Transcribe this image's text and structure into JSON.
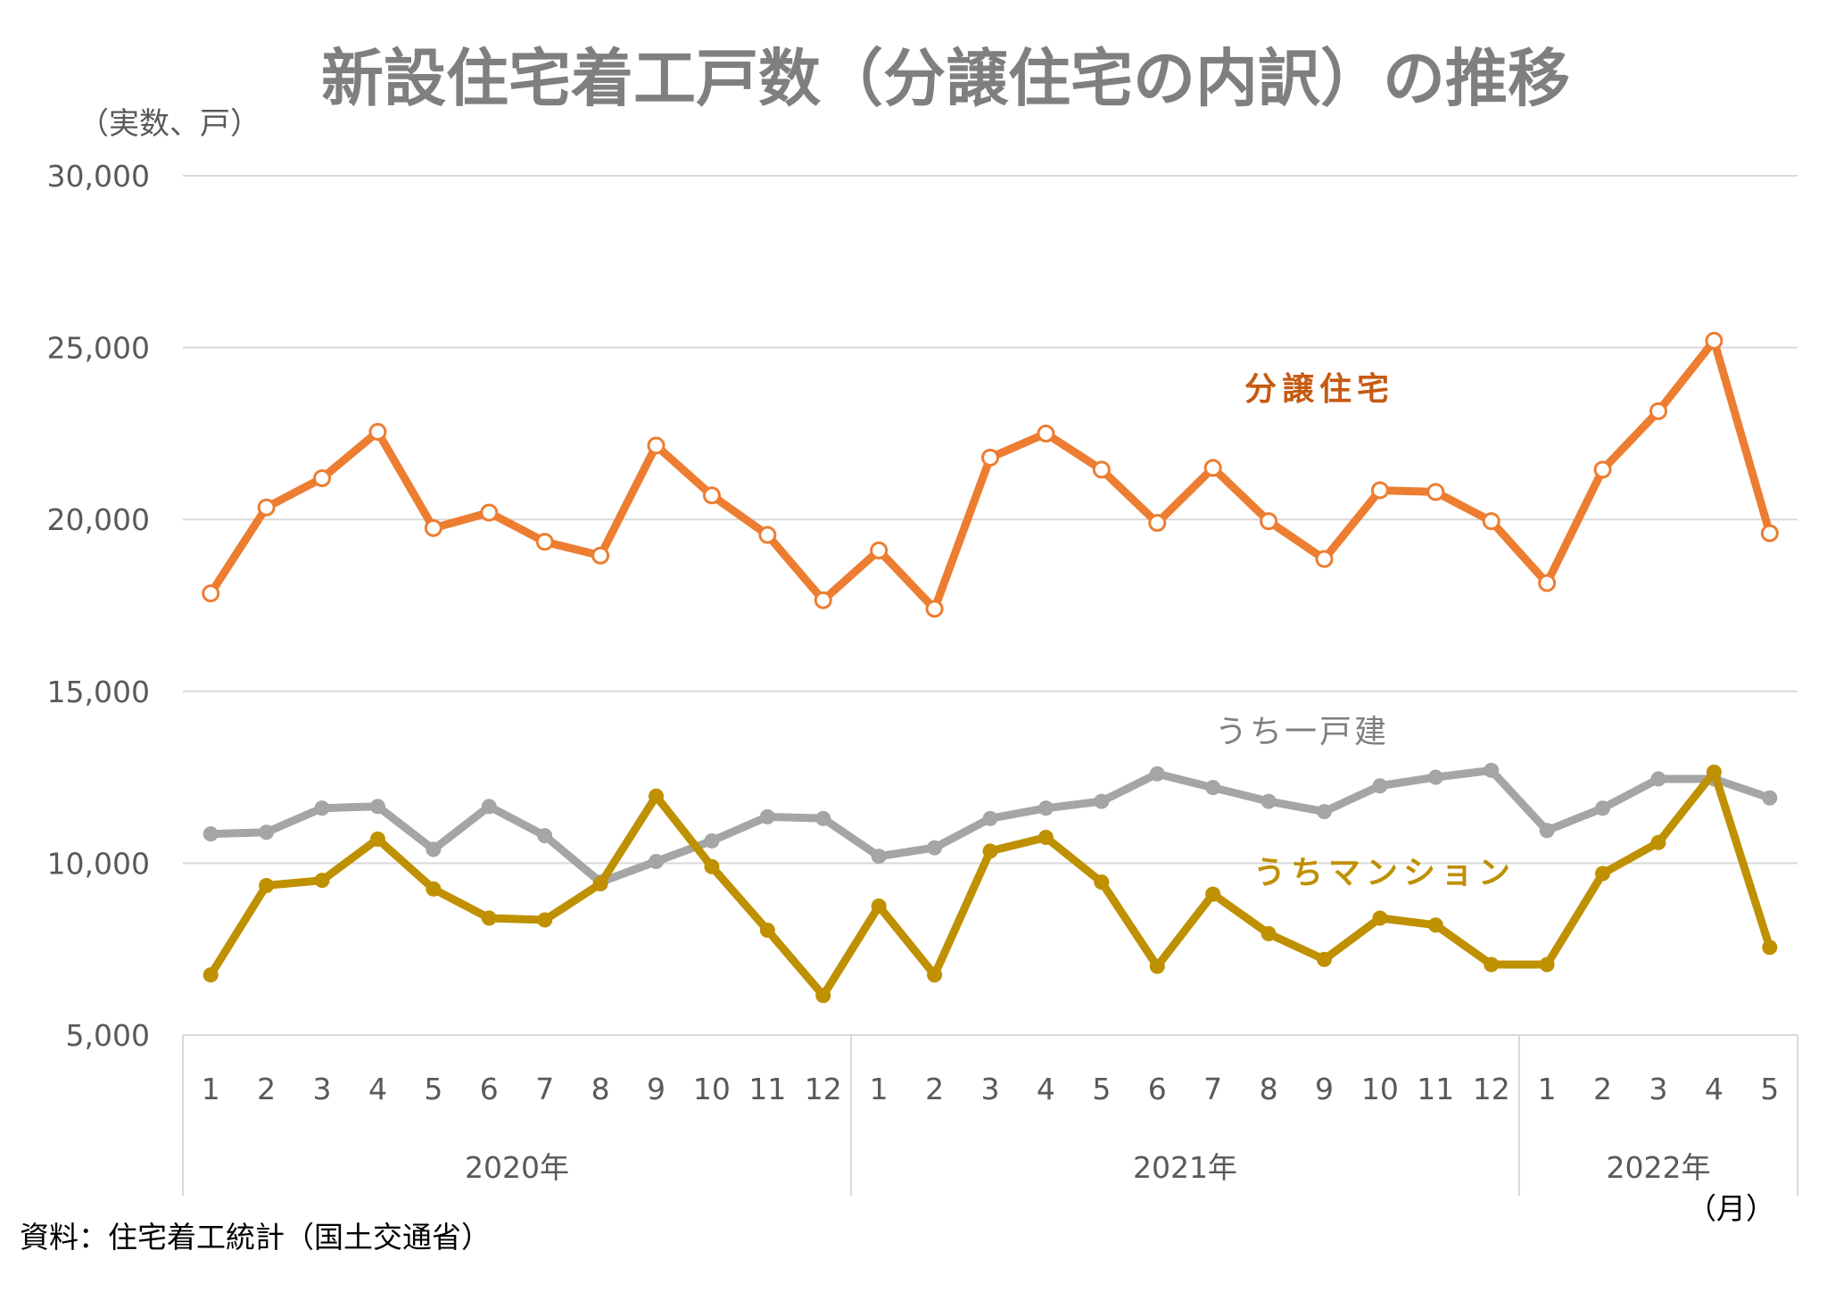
{
  "title": "新設住宅着工戸数（分譲住宅の内訳）の推移",
  "unit_label": "（実数、戸）",
  "x_unit_label": "（月）",
  "source": "資料：住宅着工統計（国土交通省）",
  "colors": {
    "bunjo": "#ED7D31",
    "kodate": "#A5A5A5",
    "mansion": "#BF9000",
    "grid": "#D9D9D9",
    "axis": "#D9D9D9",
    "bunjo_label": "#C55A11",
    "kodate_label": "#7F7F7F",
    "mansion_label": "#BF9000"
  },
  "chart_data": {
    "type": "line",
    "title": "新設住宅着工戸数（分譲住宅の内訳）の推移",
    "ylabel": "（実数、戸）",
    "xlabel": "（月）",
    "ylim": [
      5000,
      30000
    ],
    "yticks": [
      "5,000",
      "10,000",
      "15,000",
      "20,000",
      "25,000",
      "30,000"
    ],
    "ytick_values": [
      5000,
      10000,
      15000,
      20000,
      25000,
      30000
    ],
    "grid": true,
    "legend": "inline labels",
    "categories": [
      "1",
      "2",
      "3",
      "4",
      "5",
      "6",
      "7",
      "8",
      "9",
      "10",
      "11",
      "12",
      "1",
      "2",
      "3",
      "4",
      "5",
      "6",
      "7",
      "8",
      "9",
      "10",
      "11",
      "12",
      "1",
      "2",
      "3",
      "4",
      "5"
    ],
    "year_groups": [
      {
        "label": "2020年",
        "start": 0,
        "count": 12
      },
      {
        "label": "2021年",
        "start": 12,
        "count": 12
      },
      {
        "label": "2022年",
        "start": 24,
        "count": 5
      }
    ],
    "series": [
      {
        "name": "分譲住宅",
        "color": "#ED7D31",
        "marker": "hollow",
        "values": [
          17850,
          20350,
          21200,
          22550,
          19750,
          20200,
          19350,
          18950,
          22150,
          20700,
          19550,
          17650,
          19100,
          17400,
          21800,
          22500,
          21450,
          19900,
          21500,
          19950,
          18850,
          20850,
          20800,
          19950,
          18150,
          21450,
          23150,
          25200,
          19600
        ]
      },
      {
        "name": "うち一戸建",
        "color": "#A5A5A5",
        "marker": "filled",
        "values": [
          10850,
          10900,
          11600,
          11650,
          10400,
          11650,
          10800,
          9450,
          10050,
          10650,
          11350,
          11300,
          10200,
          10450,
          11300,
          11600,
          11800,
          12600,
          12200,
          11800,
          11500,
          12250,
          12500,
          12700,
          10950,
          11600,
          12450,
          12450,
          11900
        ]
      },
      {
        "name": "うちマンション",
        "color": "#BF9000",
        "marker": "filled",
        "values": [
          6750,
          9350,
          9500,
          10700,
          9250,
          8400,
          8350,
          9400,
          11950,
          9900,
          8050,
          6150,
          8750,
          6750,
          10350,
          10750,
          9450,
          7000,
          9100,
          7950,
          7200,
          8400,
          8200,
          7050,
          7050,
          9700,
          10600,
          12650,
          7550
        ]
      }
    ]
  }
}
